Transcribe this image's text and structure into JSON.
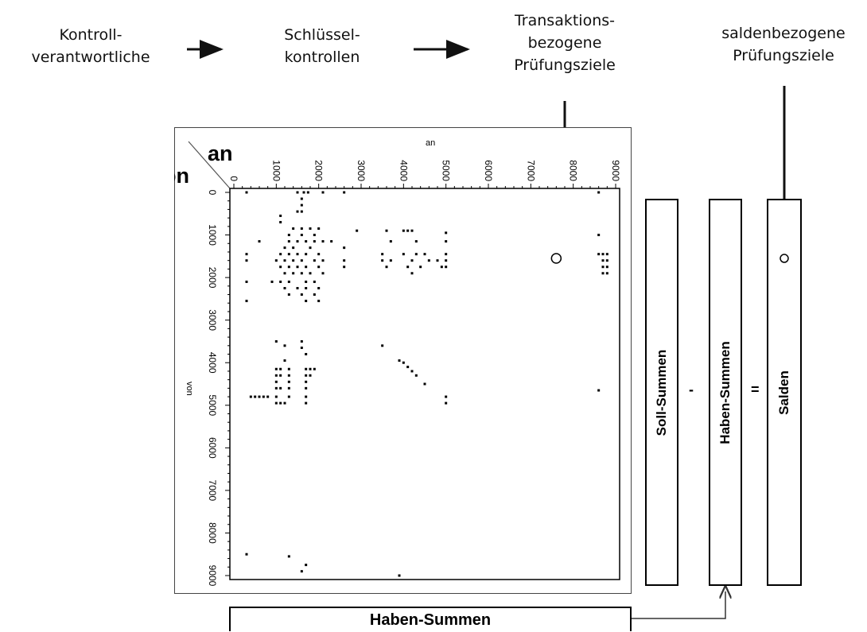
{
  "flow": {
    "step1": "Kontroll-\nverantwortliche",
    "step2": "Schlüssel-\nkontrollen",
    "step3": "Transaktions-\nbezogene\nPrüfungsziele",
    "step4": "saldenbezogene\nPrüfungsziele"
  },
  "matrix": {
    "corner_top": "an",
    "corner_left": "von",
    "axis_top_label": "an",
    "axis_left_label": "von",
    "x_ticks": [
      "0",
      "1000",
      "2000",
      "3000",
      "4000",
      "5000",
      "6000",
      "7000",
      "8000",
      "9000"
    ],
    "y_ticks": [
      "0",
      "1000",
      "2000",
      "3000",
      "4000",
      "5000",
      "6000",
      "7000",
      "8000",
      "9000"
    ]
  },
  "chart_data": {
    "type": "scatter",
    "xlabel": "an",
    "ylabel": "von",
    "xlim": [
      0,
      9000
    ],
    "ylim": [
      0,
      9000
    ],
    "points": [
      [
        300,
        0
      ],
      [
        1500,
        0
      ],
      [
        1650,
        0
      ],
      [
        1750,
        0
      ],
      [
        2100,
        0
      ],
      [
        2600,
        0
      ],
      [
        8600,
        0
      ],
      [
        1600,
        150
      ],
      [
        1600,
        300
      ],
      [
        1600,
        450
      ],
      [
        1500,
        450
      ],
      [
        1100,
        550
      ],
      [
        1100,
        700
      ],
      [
        1400,
        850
      ],
      [
        1600,
        850
      ],
      [
        1800,
        850
      ],
      [
        2000,
        850
      ],
      [
        2900,
        900
      ],
      [
        3600,
        900
      ],
      [
        4000,
        900
      ],
      [
        4100,
        900
      ],
      [
        4200,
        900
      ],
      [
        5000,
        950
      ],
      [
        1300,
        1000
      ],
      [
        1600,
        1000
      ],
      [
        1900,
        1000
      ],
      [
        8600,
        1000
      ],
      [
        600,
        1150
      ],
      [
        1300,
        1150
      ],
      [
        1500,
        1150
      ],
      [
        1700,
        1150
      ],
      [
        1900,
        1150
      ],
      [
        2100,
        1150
      ],
      [
        2300,
        1150
      ],
      [
        3700,
        1150
      ],
      [
        4300,
        1150
      ],
      [
        5000,
        1150
      ],
      [
        1200,
        1300
      ],
      [
        1400,
        1300
      ],
      [
        1800,
        1300
      ],
      [
        2600,
        1300
      ],
      [
        300,
        1450
      ],
      [
        1100,
        1450
      ],
      [
        1300,
        1450
      ],
      [
        1500,
        1450
      ],
      [
        1700,
        1450
      ],
      [
        2000,
        1450
      ],
      [
        3500,
        1450
      ],
      [
        4000,
        1450
      ],
      [
        4300,
        1450
      ],
      [
        4500,
        1450
      ],
      [
        5000,
        1450
      ],
      [
        8600,
        1450
      ],
      [
        8700,
        1450
      ],
      [
        8800,
        1450
      ],
      [
        300,
        1600
      ],
      [
        1000,
        1600
      ],
      [
        1200,
        1600
      ],
      [
        1400,
        1600
      ],
      [
        1600,
        1600
      ],
      [
        1900,
        1600
      ],
      [
        2100,
        1600
      ],
      [
        2600,
        1600
      ],
      [
        3500,
        1600
      ],
      [
        3700,
        1600
      ],
      [
        4200,
        1600
      ],
      [
        4600,
        1600
      ],
      [
        4800,
        1600
      ],
      [
        5000,
        1600
      ],
      [
        8700,
        1600
      ],
      [
        8800,
        1600
      ],
      [
        1100,
        1750
      ],
      [
        1300,
        1750
      ],
      [
        1500,
        1750
      ],
      [
        1700,
        1750
      ],
      [
        2000,
        1750
      ],
      [
        2600,
        1750
      ],
      [
        3600,
        1750
      ],
      [
        4100,
        1750
      ],
      [
        4400,
        1750
      ],
      [
        4900,
        1750
      ],
      [
        5000,
        1750
      ],
      [
        8700,
        1750
      ],
      [
        8800,
        1750
      ],
      [
        1200,
        1900
      ],
      [
        1400,
        1900
      ],
      [
        1600,
        1900
      ],
      [
        1800,
        1900
      ],
      [
        2100,
        1900
      ],
      [
        4200,
        1900
      ],
      [
        8700,
        1900
      ],
      [
        8800,
        1900
      ],
      [
        300,
        2100
      ],
      [
        900,
        2100
      ],
      [
        1100,
        2100
      ],
      [
        1300,
        2100
      ],
      [
        1700,
        2100
      ],
      [
        1900,
        2100
      ],
      [
        1200,
        2250
      ],
      [
        1500,
        2250
      ],
      [
        1700,
        2250
      ],
      [
        2000,
        2250
      ],
      [
        1300,
        2400
      ],
      [
        1600,
        2400
      ],
      [
        1900,
        2400
      ],
      [
        300,
        2550
      ],
      [
        1700,
        2550
      ],
      [
        2000,
        2550
      ],
      [
        1000,
        3500
      ],
      [
        1200,
        3600
      ],
      [
        1600,
        3500
      ],
      [
        1600,
        3650
      ],
      [
        3500,
        3600
      ],
      [
        1700,
        3800
      ],
      [
        1200,
        3950
      ],
      [
        3900,
        3950
      ],
      [
        4000,
        4000
      ],
      [
        4100,
        4100
      ],
      [
        4200,
        4200
      ],
      [
        4300,
        4300
      ],
      [
        1000,
        4150
      ],
      [
        1100,
        4150
      ],
      [
        1300,
        4150
      ],
      [
        1700,
        4150
      ],
      [
        1800,
        4150
      ],
      [
        1900,
        4150
      ],
      [
        1000,
        4300
      ],
      [
        1100,
        4300
      ],
      [
        1300,
        4300
      ],
      [
        1700,
        4300
      ],
      [
        1800,
        4300
      ],
      [
        1000,
        4450
      ],
      [
        1300,
        4450
      ],
      [
        1700,
        4450
      ],
      [
        4500,
        4500
      ],
      [
        1000,
        4600
      ],
      [
        1100,
        4600
      ],
      [
        1300,
        4600
      ],
      [
        1700,
        4600
      ],
      [
        8600,
        4650
      ],
      [
        400,
        4800
      ],
      [
        500,
        4800
      ],
      [
        600,
        4800
      ],
      [
        700,
        4800
      ],
      [
        800,
        4800
      ],
      [
        1000,
        4800
      ],
      [
        1300,
        4800
      ],
      [
        1700,
        4800
      ],
      [
        5000,
        4800
      ],
      [
        1000,
        4950
      ],
      [
        1100,
        4950
      ],
      [
        1200,
        4950
      ],
      [
        1700,
        4950
      ],
      [
        5000,
        4950
      ],
      [
        300,
        8500
      ],
      [
        1300,
        8550
      ],
      [
        1700,
        8750
      ],
      [
        1600,
        8900
      ],
      [
        3900,
        9000
      ]
    ]
  },
  "markers": {
    "transaktion": {
      "x": 7600,
      "y": 1550
    },
    "salden_index": 1550
  },
  "columns": {
    "soll": "Soll-Summen",
    "minus": "-",
    "haben": "Haben-Summen",
    "equals": "=",
    "salden": "Salden"
  },
  "bottom": {
    "haben_label": "Haben-Summen"
  }
}
